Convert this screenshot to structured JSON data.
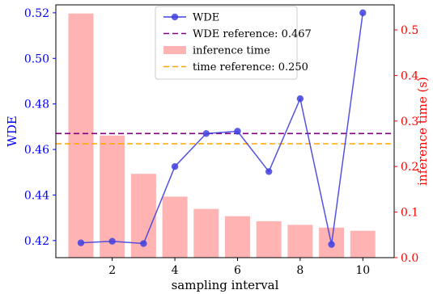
{
  "chart_data": {
    "type": "bar+line",
    "xlabel": "sampling interval",
    "ylabel_left": "WDE",
    "ylabel_right": "inference time (s)",
    "x_ticks": [
      2,
      4,
      6,
      8,
      10
    ],
    "y_left_ticks": [
      0.42,
      0.44,
      0.46,
      0.48,
      0.5,
      0.52
    ],
    "y_right_ticks": [
      0.0,
      0.1,
      0.2,
      0.3,
      0.4,
      0.5
    ],
    "y_left_tick_labels": [
      "0.42",
      "0.44",
      "0.46",
      "0.48",
      "0.50",
      "0.52"
    ],
    "y_right_tick_labels": [
      "0.0",
      "0.1",
      "0.2",
      "0.3",
      "0.4",
      "0.5"
    ],
    "xlim": [
      0.2,
      11.0
    ],
    "ylim_left": [
      0.4125,
      0.5235
    ],
    "ylim_right": [
      0.0,
      0.555
    ],
    "x": [
      1,
      2,
      3,
      4,
      5,
      6,
      7,
      8,
      9,
      10
    ],
    "series": [
      {
        "name": "WDE",
        "kind": "line",
        "axis": "left",
        "color": "#4040e0",
        "values": [
          0.419,
          0.4197,
          0.4187,
          0.4525,
          0.467,
          0.468,
          0.4503,
          0.4823,
          0.4183,
          0.52
        ]
      },
      {
        "name": "inference time",
        "kind": "bar",
        "axis": "right",
        "color": "#ffb3b3",
        "values": [
          0.536,
          0.268,
          0.184,
          0.134,
          0.107,
          0.091,
          0.08,
          0.072,
          0.066,
          0.059
        ]
      }
    ],
    "reference_lines": [
      {
        "label": "WDE reference: 0.467",
        "axis": "left",
        "value": 0.467,
        "color": "#800080"
      },
      {
        "label": "time reference: 0.250",
        "axis": "right",
        "value": 0.25,
        "color": "#ffa500"
      }
    ],
    "legend": {
      "placement": "top-center",
      "entries": [
        "WDE",
        "WDE reference: 0.467",
        "inference time",
        "time reference: 0.250"
      ]
    },
    "colors": {
      "left_axis": "#0000ff",
      "right_axis": "#ff0000",
      "line": "#4040e0",
      "bar": "#ffb3b3",
      "wde_reference": "#800080",
      "time_reference": "#ffa500"
    },
    "grid": false
  }
}
